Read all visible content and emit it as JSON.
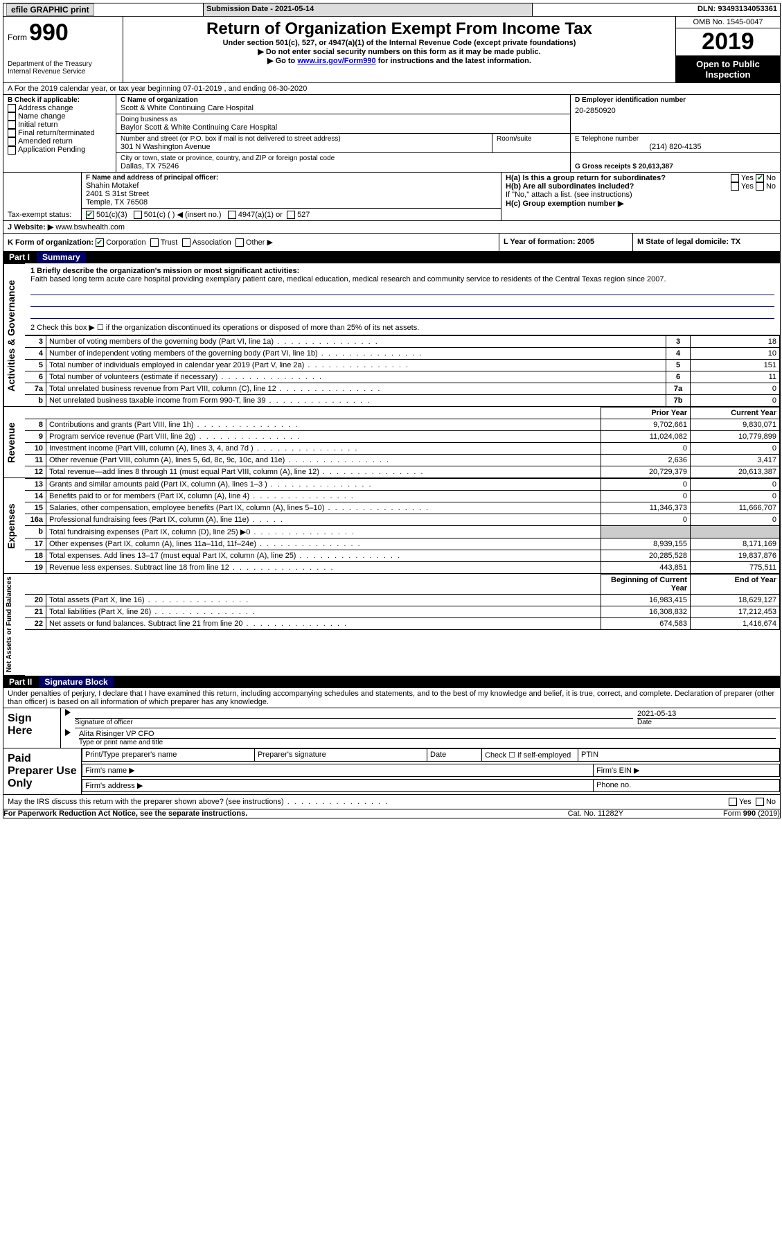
{
  "topbar": {
    "efile": "efile GRAPHIC print",
    "submission_label": "Submission Date - 2021-05-14",
    "dln_label": "DLN: 93493134053361"
  },
  "header": {
    "form": "Form",
    "num": "990",
    "dept": "Department of the Treasury\nInternal Revenue Service",
    "title": "Return of Organization Exempt From Income Tax",
    "subtitle": "Under section 501(c), 527, or 4947(a)(1) of the Internal Revenue Code (except private foundations)",
    "arrow1": "▶ Do not enter social security numbers on this form as it may be made public.",
    "arrow2_pre": "▶ Go to ",
    "arrow2_link": "www.irs.gov/Form990",
    "arrow2_post": " for instructions and the latest information.",
    "omb": "OMB No. 1545-0047",
    "year": "2019",
    "open_public": "Open to Public Inspection"
  },
  "sectionA": "A   For the 2019 calendar year, or tax year beginning 07-01-2019    , and ending 06-30-2020",
  "boxB": {
    "label": "B Check if applicable:",
    "opts": [
      "Address change",
      "Name change",
      "Initial return",
      "Final return/terminated",
      "Amended return",
      "Application Pending"
    ]
  },
  "boxC": {
    "name_label": "C Name of organization",
    "name": "Scott & White Continuing Care Hospital",
    "dba_label": "Doing business as",
    "dba": "Baylor Scott & White Continuing Care Hospital",
    "street_label": "Number and street (or P.O. box if mail is not delivered to street address)",
    "street": "301 N Washington Avenue",
    "room_label": "Room/suite",
    "city_label": "City or town, state or province, country, and ZIP or foreign postal code",
    "city": "Dallas, TX  75246"
  },
  "boxD": {
    "label": "D Employer identification number",
    "val": "20-2850920"
  },
  "boxE": {
    "label": "E Telephone number",
    "val": "(214) 820-4135"
  },
  "boxG": {
    "label": "G Gross receipts $ 20,613,387"
  },
  "boxF": {
    "label": "F Name and address of principal officer:",
    "name": "Shahin Motakef",
    "addr1": "2401 S 31st Street",
    "addr2": "Temple, TX  76508"
  },
  "boxH": {
    "a": "H(a)  Is this a group return for subordinates?",
    "b": "H(b)  Are all subordinates included?",
    "note": "If \"No,\" attach a list. (see instructions)",
    "c": "H(c)  Group exemption number ▶",
    "yes": "Yes",
    "no": "No"
  },
  "taxexempt": {
    "label": "Tax-exempt status:",
    "c3": "501(c)(3)",
    "c": "501(c) (   ) ◀ (insert no.)",
    "a1": "4947(a)(1) or",
    "s527": "527"
  },
  "boxJ": {
    "label": "J   Website: ▶",
    "val": "www.bswhealth.com"
  },
  "boxK": {
    "label": "K Form of organization:",
    "opts": [
      "Corporation",
      "Trust",
      "Association",
      "Other ▶"
    ]
  },
  "boxL": {
    "label": "L Year of formation: 2005"
  },
  "boxM": {
    "label": "M State of legal domicile: TX"
  },
  "part1": {
    "num": "Part I",
    "title": "Summary"
  },
  "summary1": {
    "label": "1  Briefly describe the organization's mission or most significant activities:",
    "text": "Faith based long term acute care hospital providing exemplary patient care, medical education, medical research and community service to residents of the Central Texas region since 2007."
  },
  "group_act": "Activities & Governance",
  "group_rev": "Revenue",
  "group_exp": "Expenses",
  "group_net": "Net Assets or Fund Balances",
  "line2": "2   Check this box ▶ ☐  if the organization discontinued its operations or disposed of more than 25% of its net assets.",
  "rows_act": [
    {
      "n": "3",
      "d": "Number of voting members of the governing body (Part VI, line 1a)",
      "b": "3",
      "v": "18"
    },
    {
      "n": "4",
      "d": "Number of independent voting members of the governing body (Part VI, line 1b)",
      "b": "4",
      "v": "10"
    },
    {
      "n": "5",
      "d": "Total number of individuals employed in calendar year 2019 (Part V, line 2a)",
      "b": "5",
      "v": "151"
    },
    {
      "n": "6",
      "d": "Total number of volunteers (estimate if necessary)",
      "b": "6",
      "v": "11"
    },
    {
      "n": "7a",
      "d": "Total unrelated business revenue from Part VIII, column (C), line 12",
      "b": "7a",
      "v": "0"
    },
    {
      "n": "b",
      "d": "Net unrelated business taxable income from Form 990-T, line 39",
      "b": "7b",
      "v": "0"
    }
  ],
  "colhead": {
    "py": "Prior Year",
    "cy": "Current Year"
  },
  "rows_rev": [
    {
      "n": "8",
      "d": "Contributions and grants (Part VIII, line 1h)",
      "py": "9,702,661",
      "cy": "9,830,071"
    },
    {
      "n": "9",
      "d": "Program service revenue (Part VIII, line 2g)",
      "py": "11,024,082",
      "cy": "10,779,899"
    },
    {
      "n": "10",
      "d": "Investment income (Part VIII, column (A), lines 3, 4, and 7d )",
      "py": "0",
      "cy": "0"
    },
    {
      "n": "11",
      "d": "Other revenue (Part VIII, column (A), lines 5, 6d, 8c, 9c, 10c, and 11e)",
      "py": "2,636",
      "cy": "3,417"
    },
    {
      "n": "12",
      "d": "Total revenue—add lines 8 through 11 (must equal Part VIII, column (A), line 12)",
      "py": "20,729,379",
      "cy": "20,613,387"
    }
  ],
  "rows_exp": [
    {
      "n": "13",
      "d": "Grants and similar amounts paid (Part IX, column (A), lines 1–3 )",
      "py": "0",
      "cy": "0"
    },
    {
      "n": "14",
      "d": "Benefits paid to or for members (Part IX, column (A), line 4)",
      "py": "0",
      "cy": "0"
    },
    {
      "n": "15",
      "d": "Salaries, other compensation, employee benefits (Part IX, column (A), lines 5–10)",
      "py": "11,346,373",
      "cy": "11,666,707"
    },
    {
      "n": "16a",
      "d": "Professional fundraising fees (Part IX, column (A), line 11e)",
      "py": "0",
      "cy": "0"
    },
    {
      "n": "b",
      "d": "Total fundraising expenses (Part IX, column (D), line 25) ▶0",
      "py": "",
      "cy": "",
      "gray": true
    },
    {
      "n": "17",
      "d": "Other expenses (Part IX, column (A), lines 11a–11d, 11f–24e)",
      "py": "8,939,155",
      "cy": "8,171,169"
    },
    {
      "n": "18",
      "d": "Total expenses. Add lines 13–17 (must equal Part IX, column (A), line 25)",
      "py": "20,285,528",
      "cy": "19,837,876"
    },
    {
      "n": "19",
      "d": "Revenue less expenses. Subtract line 18 from line 12",
      "py": "443,851",
      "cy": "775,511"
    }
  ],
  "colhead2": {
    "py": "Beginning of Current Year",
    "cy": "End of Year"
  },
  "rows_net": [
    {
      "n": "20",
      "d": "Total assets (Part X, line 16)",
      "py": "16,983,415",
      "cy": "18,629,127"
    },
    {
      "n": "21",
      "d": "Total liabilities (Part X, line 26)",
      "py": "16,308,832",
      "cy": "17,212,453"
    },
    {
      "n": "22",
      "d": "Net assets or fund balances. Subtract line 21 from line 20",
      "py": "674,583",
      "cy": "1,416,674"
    }
  ],
  "part2": {
    "num": "Part II",
    "title": "Signature Block"
  },
  "penalty": "Under penalties of perjury, I declare that I have examined this return, including accompanying schedules and statements, and to the best of my knowledge and belief, it is true, correct, and complete. Declaration of preparer (other than officer) is based on all information of which preparer has any knowledge.",
  "sign": {
    "here": "Sign Here",
    "sig_of": "Signature of officer",
    "date": "Date",
    "date_val": "2021-05-13",
    "typed": "Alita Risinger  VP CFO",
    "typed_label": "Type or print name and title"
  },
  "paid": {
    "label": "Paid Preparer Use Only",
    "p1": "Print/Type preparer's name",
    "p2": "Preparer's signature",
    "p3": "Date",
    "p4": "Check ☐ if self-employed",
    "p5": "PTIN",
    "f1": "Firm's name    ▶",
    "f2": "Firm's EIN ▶",
    "f3": "Firm's address ▶",
    "f4": "Phone no."
  },
  "discuss": "May the IRS discuss this return with the preparer shown above? (see instructions)",
  "footer": {
    "pra": "For Paperwork Reduction Act Notice, see the separate instructions.",
    "cat": "Cat. No. 11282Y",
    "form": "Form 990 (2019)"
  }
}
